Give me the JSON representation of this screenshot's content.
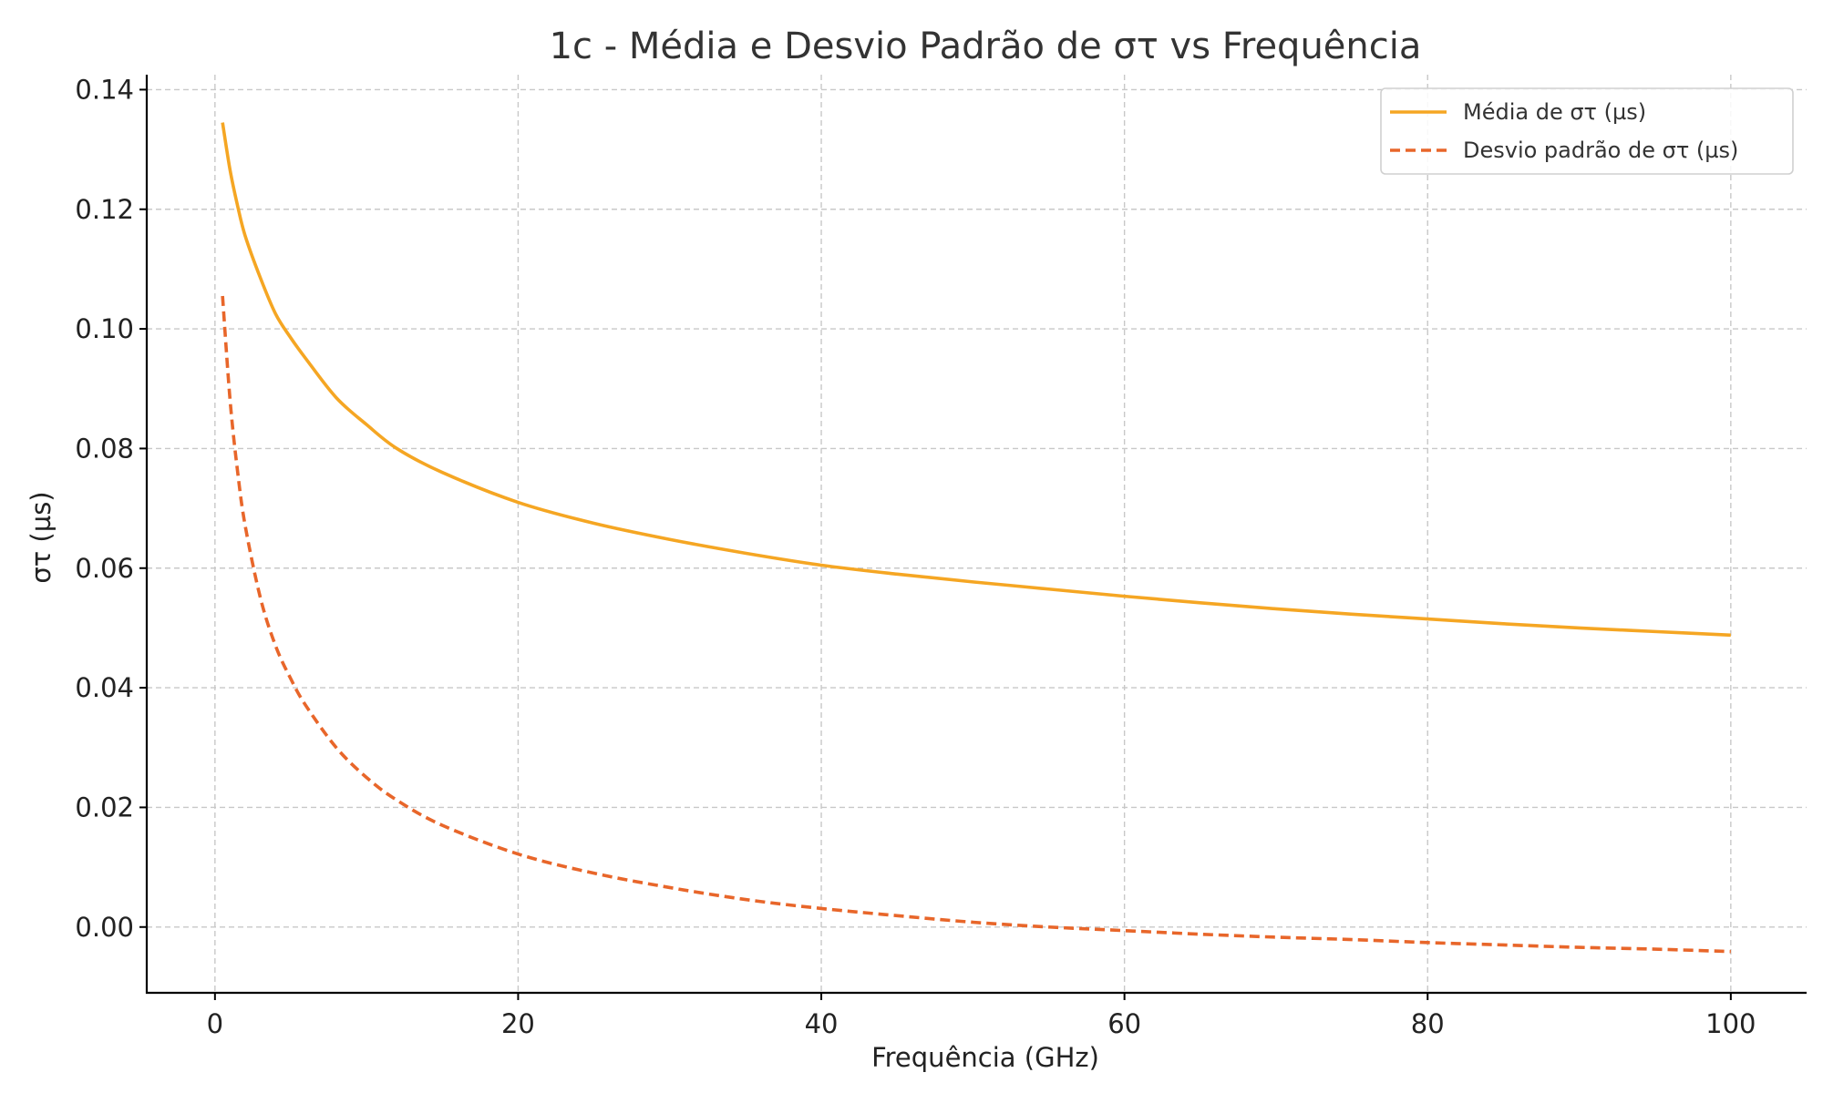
{
  "chart_data": {
    "type": "line",
    "title": "1c - Média e Desvio Padrão de στ vs Frequência",
    "xlabel": "Frequência (GHz)",
    "ylabel": "στ (µs)",
    "xlim": [
      -4.5,
      105
    ],
    "ylim": [
      -0.011,
      0.1425
    ],
    "xticks": [
      0,
      20,
      40,
      60,
      80,
      100
    ],
    "xtick_labels": [
      "0",
      "20",
      "40",
      "60",
      "80",
      "100"
    ],
    "yticks": [
      0.0,
      0.02,
      0.04,
      0.06,
      0.08,
      0.1,
      0.12,
      0.14
    ],
    "ytick_labels": [
      "0.00",
      "0.02",
      "0.04",
      "0.06",
      "0.08",
      "0.10",
      "0.12",
      "0.14"
    ],
    "grid": true,
    "legend_position": "top-right",
    "series": [
      {
        "name": "Média de στ (µs)",
        "color": "#f5a623",
        "style": "solid",
        "x": [
          0.5,
          1,
          1.5,
          2,
          3,
          4,
          5,
          6,
          8,
          10,
          12,
          15,
          20,
          25,
          30,
          35,
          40,
          45,
          50,
          55,
          60,
          65,
          70,
          75,
          80,
          85,
          90,
          95,
          100
        ],
        "y": [
          0.1345,
          0.1265,
          0.1205,
          0.1155,
          0.1085,
          0.1025,
          0.0985,
          0.095,
          0.0885,
          0.084,
          0.08,
          0.076,
          0.071,
          0.0675,
          0.0648,
          0.0625,
          0.0605,
          0.059,
          0.0577,
          0.0565,
          0.0553,
          0.0542,
          0.0532,
          0.0523,
          0.0515,
          0.0507,
          0.05,
          0.0494,
          0.0488
        ]
      },
      {
        "name": "Desvio padrão de στ (µs)",
        "color": "#e8662a",
        "style": "dashed",
        "x": [
          0.5,
          1,
          1.5,
          2,
          3,
          4,
          5,
          6,
          8,
          10,
          12,
          15,
          20,
          25,
          30,
          35,
          40,
          45,
          50,
          55,
          60,
          65,
          70,
          75,
          80,
          85,
          90,
          95,
          100
        ],
        "y": [
          0.1055,
          0.088,
          0.076,
          0.067,
          0.055,
          0.047,
          0.0415,
          0.037,
          0.03,
          0.025,
          0.0212,
          0.017,
          0.0122,
          0.009,
          0.0066,
          0.0046,
          0.0031,
          0.0019,
          0.0008,
          0.0,
          -0.0006,
          -0.0012,
          -0.0017,
          -0.0021,
          -0.0026,
          -0.003,
          -0.0034,
          -0.0037,
          -0.0041
        ]
      }
    ]
  }
}
